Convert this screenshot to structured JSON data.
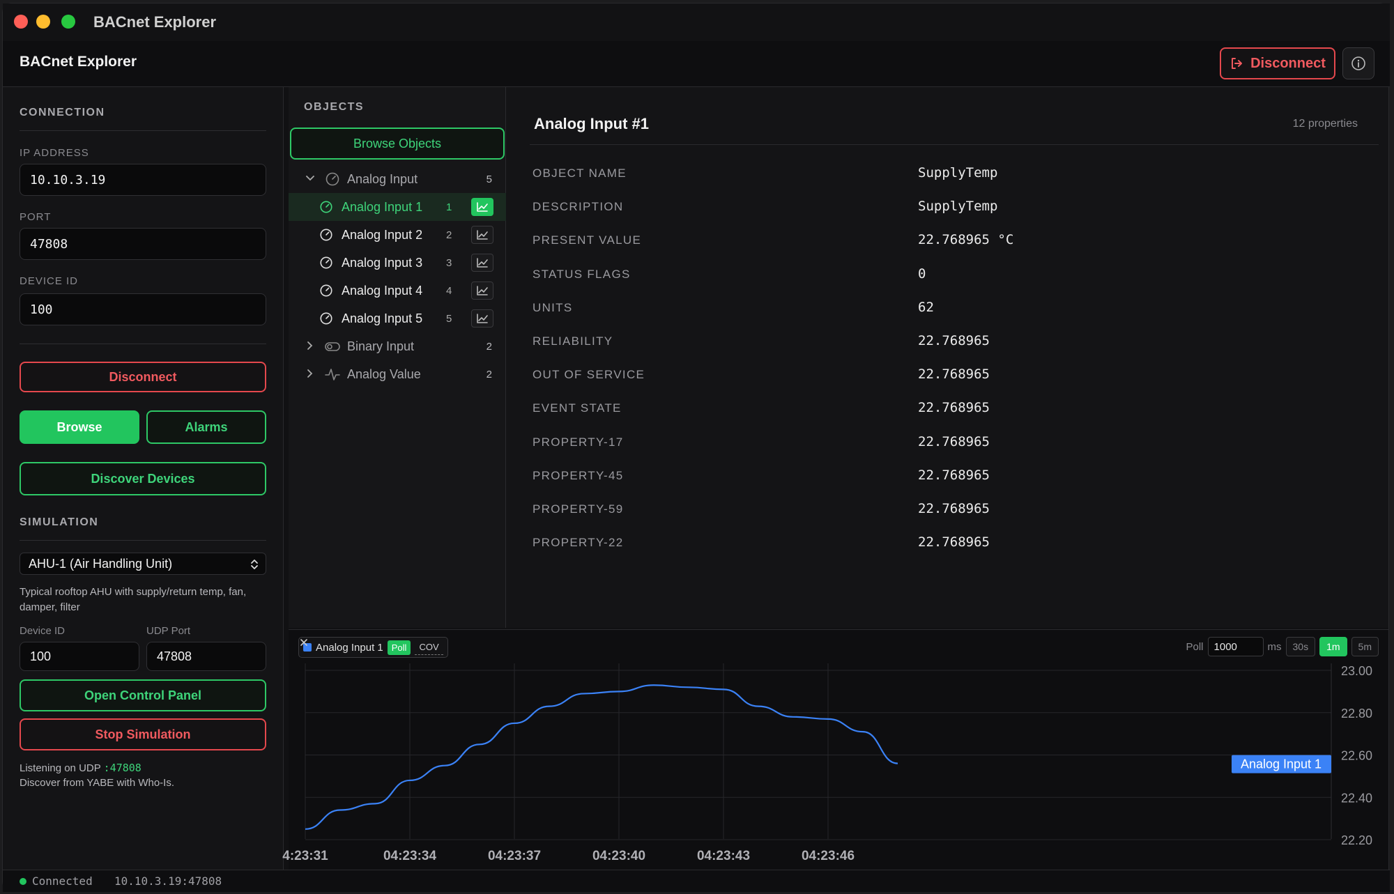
{
  "window": {
    "title": "BACnet Explorer"
  },
  "header": {
    "title": "BACnet Explorer",
    "disconnect_label": "Disconnect",
    "info_icon": "info-icon",
    "logout_icon": "logout-icon"
  },
  "connection": {
    "section_label": "CONNECTION",
    "ip_label": "IP ADDRESS",
    "ip_value": "10.10.3.19",
    "port_label": "PORT",
    "port_value": "47808",
    "device_label": "DEVICE ID",
    "device_value": "100",
    "disconnect_label": "Disconnect",
    "browse_label": "Browse",
    "alarms_label": "Alarms",
    "discover_label": "Discover Devices"
  },
  "simulation": {
    "section_label": "SIMULATION",
    "selected": "AHU-1 (Air Handling Unit)",
    "description": "Typical rooftop AHU with supply/return temp, fan, damper, filter",
    "device_label": "Device ID",
    "device_value": "100",
    "udp_label": "UDP Port",
    "udp_value": "47808",
    "open_panel_label": "Open Control Panel",
    "stop_label": "Stop Simulation",
    "listening_prefix": "Listening on UDP",
    "listening_port": ":47808",
    "discover_hint": "Discover from YABE with Who-Is."
  },
  "objects": {
    "header": "OBJECTS",
    "browse_label": "Browse Objects",
    "groups": [
      {
        "label": "Analog Input",
        "count": "5",
        "icon": "gauge-icon",
        "expanded": true,
        "items": [
          {
            "label": "Analog Input 1",
            "id": "1",
            "selected": true
          },
          {
            "label": "Analog Input 2",
            "id": "2"
          },
          {
            "label": "Analog Input 3",
            "id": "3"
          },
          {
            "label": "Analog Input 4",
            "id": "4"
          },
          {
            "label": "Analog Input 5",
            "id": "5"
          }
        ]
      },
      {
        "label": "Binary Input",
        "count": "2",
        "icon": "toggle-icon"
      },
      {
        "label": "Analog Value",
        "count": "2",
        "icon": "pulse-icon"
      }
    ]
  },
  "details": {
    "title": "Analog Input #1",
    "count": "12 properties",
    "properties": [
      {
        "key": "OBJECT NAME",
        "value": "SupplyTemp"
      },
      {
        "key": "DESCRIPTION",
        "value": "SupplyTemp"
      },
      {
        "key": "PRESENT VALUE",
        "value": "22.768965 °C"
      },
      {
        "key": "STATUS FLAGS",
        "value": "0"
      },
      {
        "key": "UNITS",
        "value": "62"
      },
      {
        "key": "RELIABILITY",
        "value": "22.768965"
      },
      {
        "key": "OUT OF SERVICE",
        "value": "22.768965"
      },
      {
        "key": "EVENT STATE",
        "value": "22.768965"
      },
      {
        "key": "PROPERTY-17",
        "value": "22.768965"
      },
      {
        "key": "PROPERTY-45",
        "value": "22.768965"
      },
      {
        "key": "PROPERTY-59",
        "value": "22.768965"
      },
      {
        "key": "PROPERTY-22",
        "value": "22.768965"
      }
    ]
  },
  "trend": {
    "tag_label": "Analog Input 1",
    "poll_label": "Poll",
    "cov_label": "COV",
    "poll_text": "Poll",
    "poll_value": "1000",
    "poll_unit": "ms",
    "ranges": [
      "30s",
      "1m",
      "5m"
    ],
    "active_range": "1m",
    "line_color": "#3b82f6",
    "chart_data": {
      "type": "line",
      "series": [
        {
          "name": "Analog Input 1",
          "x": [
            "04:23:31",
            "04:23:32",
            "04:23:33",
            "04:23:34",
            "04:23:35",
            "04:23:36",
            "04:23:37",
            "04:23:38",
            "04:23:39",
            "04:23:40",
            "04:23:41",
            "04:23:42",
            "04:23:43",
            "04:23:44",
            "04:23:45",
            "04:23:46",
            "04:23:47",
            "04:23:48"
          ],
          "values": [
            22.25,
            22.34,
            22.37,
            22.48,
            22.55,
            22.65,
            22.75,
            22.83,
            22.89,
            22.9,
            22.93,
            22.92,
            22.91,
            22.83,
            22.78,
            22.77,
            22.71,
            22.56
          ]
        }
      ],
      "x_tick_labels": [
        "4:23:31",
        "04:23:34",
        "04:23:37",
        "04:23:40",
        "04:23:43",
        "04:23:46"
      ],
      "y_tick_labels": [
        "23.00",
        "22.80",
        "22.60",
        "22.40",
        "22.20"
      ],
      "ylim": [
        22.2,
        23.0
      ],
      "grid": true,
      "last_value_label": "Analog Input 1"
    }
  },
  "status": {
    "text": "Connected",
    "endpoint": "10.10.3.19:47808",
    "dot_color": "#22c55e"
  }
}
